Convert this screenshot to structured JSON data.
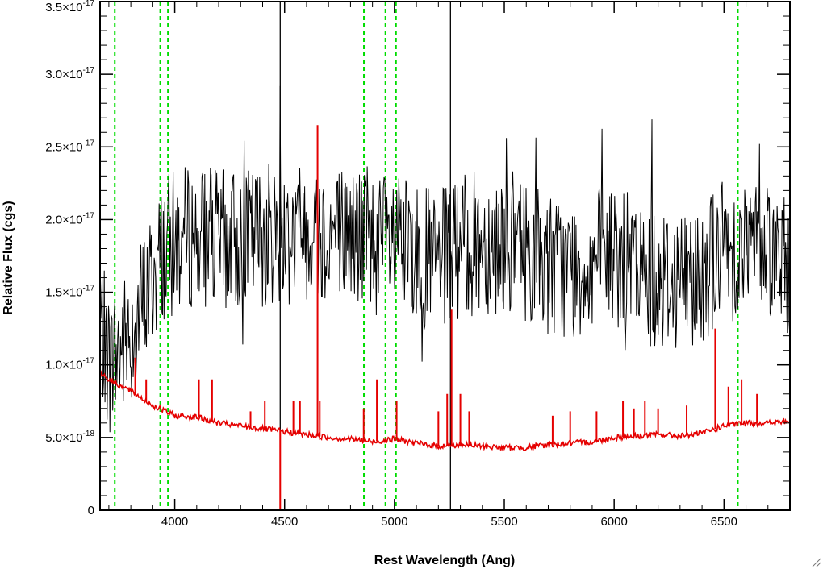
{
  "chart_data": {
    "type": "line",
    "title": "",
    "xlabel": "Rest Wavelength (Ang)",
    "ylabel": "Relative Flux (cgs)",
    "xlim": [
      3660,
      6800
    ],
    "ylim": [
      0,
      3.5e-17
    ],
    "x_ticks": [
      {
        "value": 4000,
        "label": "4000"
      },
      {
        "value": 4500,
        "label": "4500"
      },
      {
        "value": 5000,
        "label": "5000"
      },
      {
        "value": 5500,
        "label": "5500"
      },
      {
        "value": 6000,
        "label": "6000"
      },
      {
        "value": 6500,
        "label": "6500"
      }
    ],
    "y_ticks": [
      {
        "value": 0,
        "mantissa": "0",
        "exponent": ""
      },
      {
        "value": 5e-18,
        "mantissa": "5.0×10",
        "exponent": "-18"
      },
      {
        "value": 1e-17,
        "mantissa": "1.0×10",
        "exponent": "-17"
      },
      {
        "value": 1.5e-17,
        "mantissa": "1.5×10",
        "exponent": "-17"
      },
      {
        "value": 2e-17,
        "mantissa": "2.0×10",
        "exponent": "-17"
      },
      {
        "value": 2.5e-17,
        "mantissa": "2.5×10",
        "exponent": "-17"
      },
      {
        "value": 3e-17,
        "mantissa": "3.0×10",
        "exponent": "-17"
      },
      {
        "value": 3.5e-17,
        "mantissa": "3.5×10",
        "exponent": "-17"
      }
    ],
    "grid": false,
    "legend": "none",
    "series": [
      {
        "color": "#000000",
        "style": "noisy spectrum (approximate envelope of observed flux)",
        "x": [
          3660,
          3700,
          3750,
          3800,
          3850,
          3900,
          3950,
          4000,
          4100,
          4200,
          4300,
          4400,
          4500,
          4600,
          4700,
          4800,
          4900,
          5000,
          5100,
          5200,
          5300,
          5400,
          5500,
          5600,
          5700,
          5800,
          5900,
          6000,
          6100,
          6200,
          6300,
          6400,
          6500,
          6600,
          6700,
          6800
        ],
        "y": [
          1.3e-17,
          1e-17,
          1.1e-17,
          1.2e-17,
          1.4e-17,
          1.6e-17,
          1.8e-17,
          1.85e-17,
          1.9e-17,
          1.85e-17,
          1.85e-17,
          1.9e-17,
          1.9e-17,
          1.95e-17,
          1.9e-17,
          1.9e-17,
          1.85e-17,
          1.8e-17,
          1.75e-17,
          1.7e-17,
          1.8e-17,
          1.85e-17,
          1.85e-17,
          1.8e-17,
          1.7e-17,
          1.65e-17,
          1.7e-17,
          1.75e-17,
          1.65e-17,
          1.6e-17,
          1.6e-17,
          1.65e-17,
          1.8e-17,
          1.8e-17,
          1.85e-17,
          1.6e-17
        ]
      },
      {
        "color": "#e50000",
        "style": "model continuum with emission spikes",
        "x": [
          3660,
          3700,
          3800,
          3900,
          4000,
          4100,
          4200,
          4300,
          4400,
          4500,
          4600,
          4700,
          4800,
          4900,
          5000,
          5100,
          5200,
          5300,
          5400,
          5500,
          5600,
          5700,
          5800,
          5900,
          6000,
          6100,
          6200,
          6300,
          6400,
          6500,
          6600,
          6700,
          6800
        ],
        "y": [
          9.5e-18,
          9e-18,
          8.2e-18,
          7.2e-18,
          6.5e-18,
          6.4e-18,
          6e-18,
          5.8e-18,
          5.6e-18,
          5.4e-18,
          5.2e-18,
          5e-18,
          4.9e-18,
          4.7e-18,
          4.9e-18,
          4.6e-18,
          4.4e-18,
          4.5e-18,
          4.4e-18,
          4.3e-18,
          4.3e-18,
          4.5e-18,
          4.6e-18,
          4.7e-18,
          5e-18,
          5.1e-18,
          5.2e-18,
          5.1e-18,
          5.3e-18,
          5.8e-18,
          6e-18,
          6e-18,
          6.1e-18
        ],
        "spikes": [
          {
            "x": 3820,
            "y": 1.05e-17
          },
          {
            "x": 3870,
            "y": 9e-18
          },
          {
            "x": 4110,
            "y": 9e-18
          },
          {
            "x": 4170,
            "y": 9e-18
          },
          {
            "x": 4345,
            "y": 6.8e-18
          },
          {
            "x": 4410,
            "y": 7.5e-18
          },
          {
            "x": 4480,
            "y": 0
          },
          {
            "x": 4540,
            "y": 7.5e-18
          },
          {
            "x": 4570,
            "y": 7.5e-18
          },
          {
            "x": 4650,
            "y": 2.65e-17
          },
          {
            "x": 4660,
            "y": 7.5e-18
          },
          {
            "x": 4860,
            "y": 7e-18
          },
          {
            "x": 4920,
            "y": 9e-18
          },
          {
            "x": 5010,
            "y": 7.5e-18
          },
          {
            "x": 5200,
            "y": 6.8e-18
          },
          {
            "x": 5240,
            "y": 8e-18
          },
          {
            "x": 5260,
            "y": 1.38e-17
          },
          {
            "x": 5300,
            "y": 8e-18
          },
          {
            "x": 5340,
            "y": 6.8e-18
          },
          {
            "x": 5720,
            "y": 6.5e-18
          },
          {
            "x": 5800,
            "y": 6.8e-18
          },
          {
            "x": 5920,
            "y": 6.8e-18
          },
          {
            "x": 6040,
            "y": 7.5e-18
          },
          {
            "x": 6090,
            "y": 7e-18
          },
          {
            "x": 6140,
            "y": 7.5e-18
          },
          {
            "x": 6200,
            "y": 7e-18
          },
          {
            "x": 6330,
            "y": 7.2e-18
          },
          {
            "x": 6460,
            "y": 1.25e-17
          },
          {
            "x": 6520,
            "y": 8.5e-18
          },
          {
            "x": 6580,
            "y": 9e-18
          },
          {
            "x": 6650,
            "y": 8e-18
          }
        ]
      }
    ],
    "vertical_lines": [
      {
        "x": 3727,
        "color": "#00dd00",
        "style": "dashed"
      },
      {
        "x": 3934,
        "color": "#00dd00",
        "style": "dashed"
      },
      {
        "x": 3969,
        "color": "#00dd00",
        "style": "dashed"
      },
      {
        "x": 4861,
        "color": "#00dd00",
        "style": "dashed"
      },
      {
        "x": 4959,
        "color": "#00dd00",
        "style": "dashed"
      },
      {
        "x": 5007,
        "color": "#00dd00",
        "style": "dashed"
      },
      {
        "x": 6563,
        "color": "#00dd00",
        "style": "dashed"
      },
      {
        "x": 4480,
        "color": "#000000",
        "style": "solid"
      },
      {
        "x": 5255,
        "color": "#000000",
        "style": "solid"
      }
    ]
  }
}
